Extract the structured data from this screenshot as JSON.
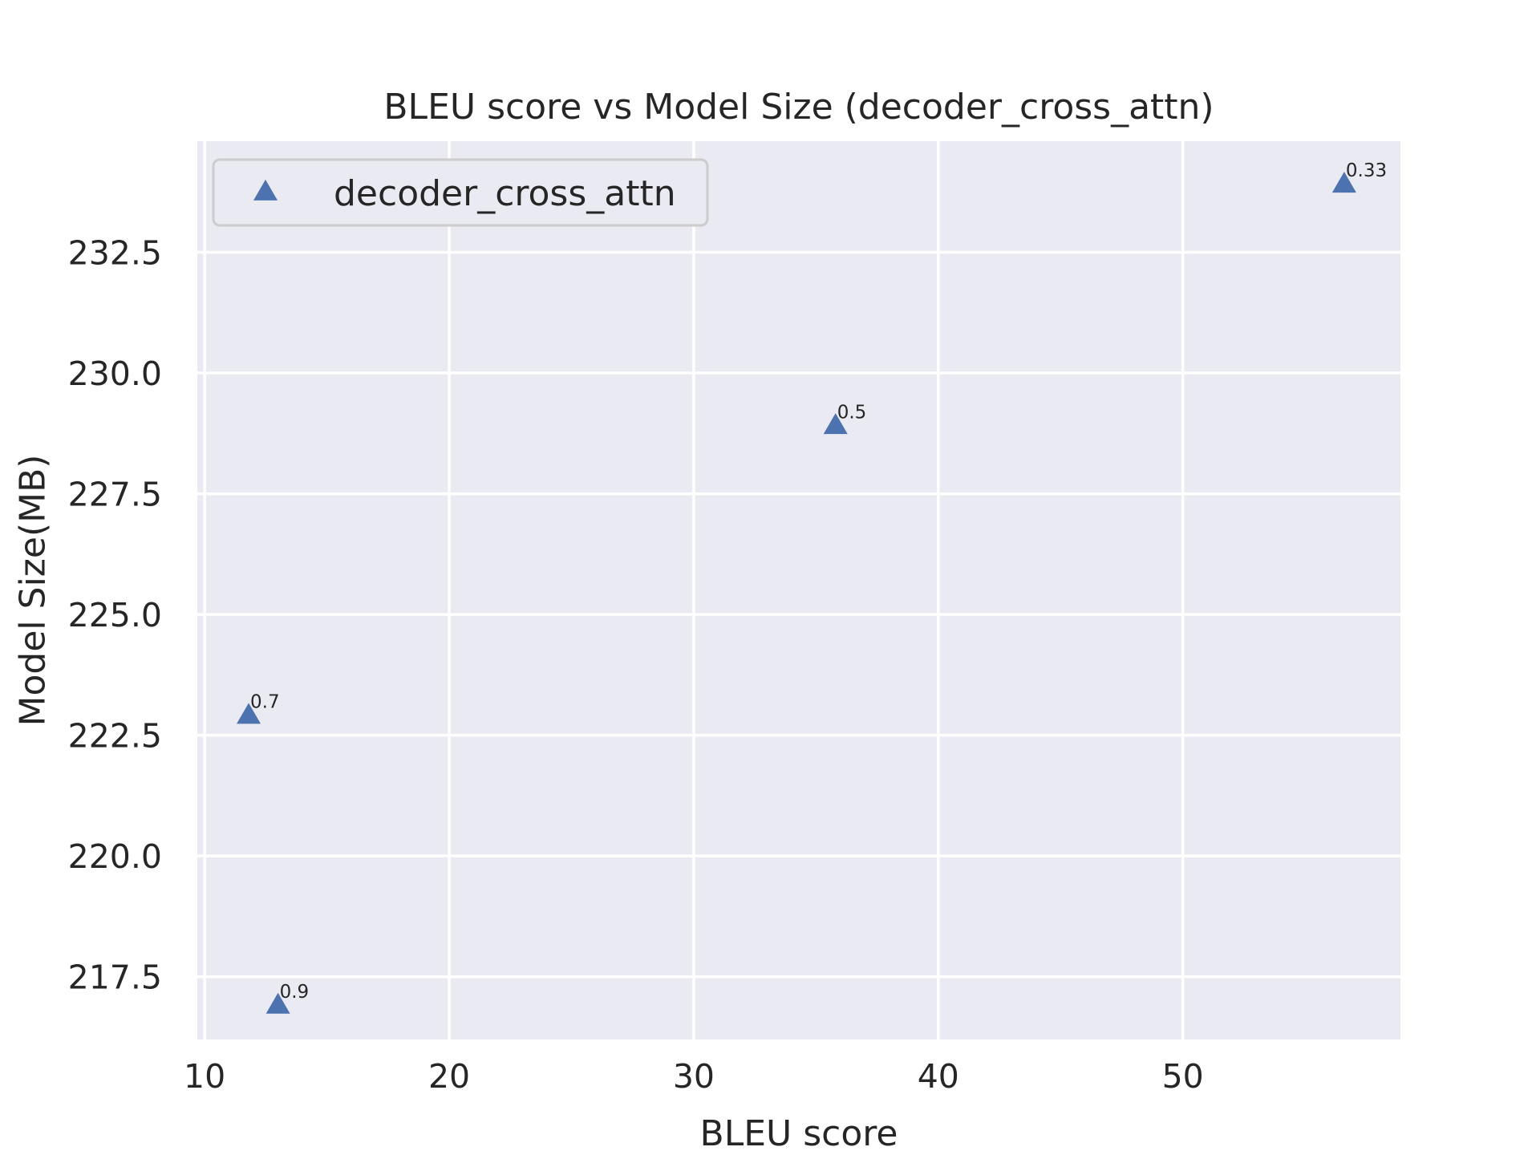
{
  "chart_data": {
    "type": "scatter",
    "title": "BLEU score vs Model Size (decoder_cross_attn)",
    "xlabel": "BLEU score",
    "ylabel": "Model Size(MB)",
    "xlim": [
      9.7,
      58.9
    ],
    "ylim": [
      216.2,
      234.8
    ],
    "xticks": [
      {
        "value": 10,
        "label": "10"
      },
      {
        "value": 20,
        "label": "20"
      },
      {
        "value": 30,
        "label": "30"
      },
      {
        "value": 40,
        "label": "40"
      },
      {
        "value": 50,
        "label": "50"
      }
    ],
    "yticks": [
      {
        "value": 217.5,
        "label": "217.5"
      },
      {
        "value": 220.0,
        "label": "220.0"
      },
      {
        "value": 222.5,
        "label": "222.5"
      },
      {
        "value": 225.0,
        "label": "225.0"
      },
      {
        "value": 227.5,
        "label": "227.5"
      },
      {
        "value": 230.0,
        "label": "230.0"
      },
      {
        "value": 232.5,
        "label": "232.5"
      }
    ],
    "grid": true,
    "legend_position": "top-left",
    "series": [
      {
        "name": "decoder_cross_attn",
        "marker": "triangle",
        "color": "#4c72b0",
        "points": [
          {
            "x": 56.6,
            "y": 233.9,
            "label": "0.33"
          },
          {
            "x": 35.8,
            "y": 228.9,
            "label": "0.5"
          },
          {
            "x": 11.8,
            "y": 222.9,
            "label": "0.7"
          },
          {
            "x": 13.0,
            "y": 216.9,
            "label": "0.9"
          }
        ]
      }
    ],
    "colors": {
      "plot_background": "#eaeaf2",
      "grid": "#ffffff",
      "marker": "#4c72b0"
    }
  }
}
